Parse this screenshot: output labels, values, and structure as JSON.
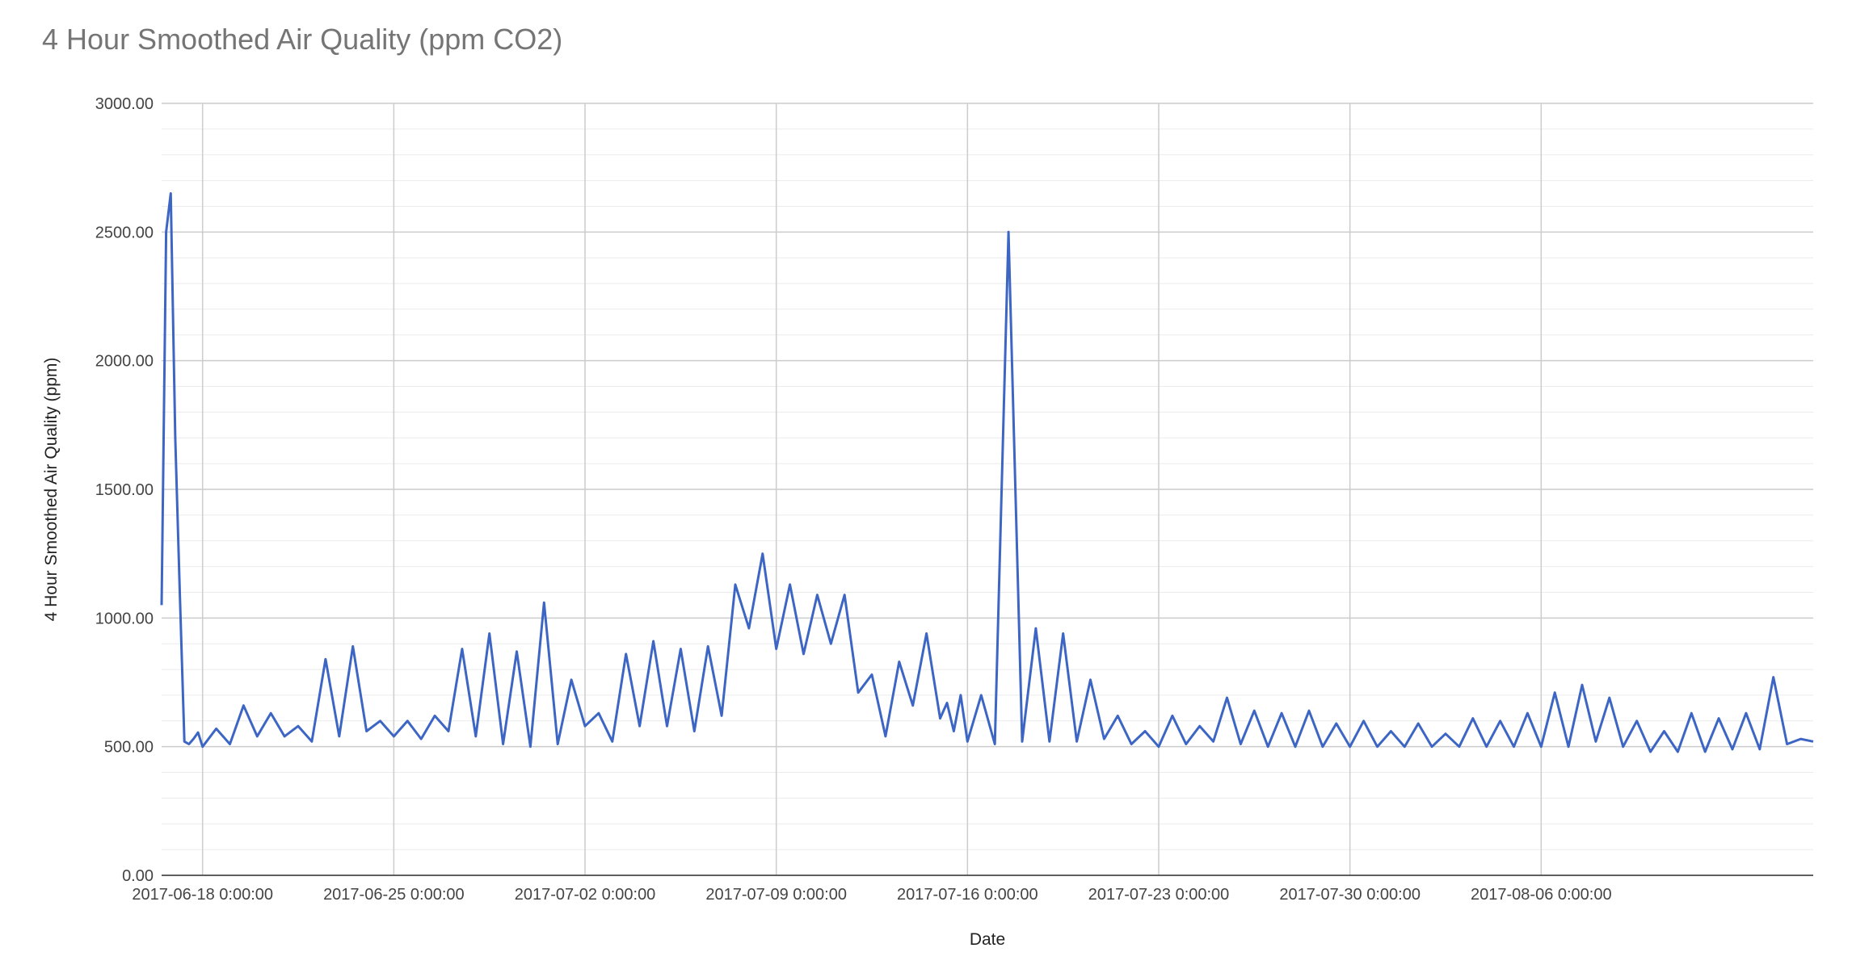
{
  "chart_data": {
    "type": "line",
    "title": "4 Hour Smoothed Air Quality (ppm CO2)",
    "xlabel": "Date",
    "ylabel": "4 Hour Smoothed Air Quality (ppm)",
    "ylim": [
      0,
      3000
    ],
    "xlim": [
      "2017-06-16 12:00:00",
      "2017-08-15 23:00:00"
    ],
    "y_ticks": [
      "0.00",
      "500.00",
      "1000.00",
      "1500.00",
      "2000.00",
      "2500.00",
      "3000.00"
    ],
    "x_ticks": [
      "2017-06-18 0:00:00",
      "2017-06-25 0:00:00",
      "2017-07-02 0:00:00",
      "2017-07-09 0:00:00",
      "2017-07-16 0:00:00",
      "2017-07-23 0:00:00",
      "2017-07-30 0:00:00",
      "2017-08-06 0:00:00"
    ],
    "grid": true,
    "legend": "none",
    "line_color": "#3d66c4",
    "series": [
      {
        "x": [
          "2017-06-16 12:00:00",
          "2017-06-16 16:00:00",
          "2017-06-16 20:00:00",
          "2017-06-17 00:00:00",
          "2017-06-17 04:00:00",
          "2017-06-17 08:00:00",
          "2017-06-17 12:00:00",
          "2017-06-17 16:00:00",
          "2017-06-17 20:00:00",
          "2017-06-18 00:00:00",
          "2017-06-18 12:00:00",
          "2017-06-19 00:00:00",
          "2017-06-19 12:00:00",
          "2017-06-20 00:00:00",
          "2017-06-20 12:00:00",
          "2017-06-21 00:00:00",
          "2017-06-21 12:00:00",
          "2017-06-22 00:00:00",
          "2017-06-22 12:00:00",
          "2017-06-23 00:00:00",
          "2017-06-23 12:00:00",
          "2017-06-24 00:00:00",
          "2017-06-24 12:00:00",
          "2017-06-25 00:00:00",
          "2017-06-25 12:00:00",
          "2017-06-26 00:00:00",
          "2017-06-26 12:00:00",
          "2017-06-27 00:00:00",
          "2017-06-27 12:00:00",
          "2017-06-28 00:00:00",
          "2017-06-28 12:00:00",
          "2017-06-29 00:00:00",
          "2017-06-29 12:00:00",
          "2017-06-30 00:00:00",
          "2017-06-30 12:00:00",
          "2017-07-01 00:00:00",
          "2017-07-01 12:00:00",
          "2017-07-02 00:00:00",
          "2017-07-02 12:00:00",
          "2017-07-03 00:00:00",
          "2017-07-03 12:00:00",
          "2017-07-04 00:00:00",
          "2017-07-04 12:00:00",
          "2017-07-05 00:00:00",
          "2017-07-05 12:00:00",
          "2017-07-06 00:00:00",
          "2017-07-06 12:00:00",
          "2017-07-07 00:00:00",
          "2017-07-07 12:00:00",
          "2017-07-08 00:00:00",
          "2017-07-08 12:00:00",
          "2017-07-09 00:00:00",
          "2017-07-09 12:00:00",
          "2017-07-10 00:00:00",
          "2017-07-10 12:00:00",
          "2017-07-11 00:00:00",
          "2017-07-11 12:00:00",
          "2017-07-12 00:00:00",
          "2017-07-12 12:00:00",
          "2017-07-13 00:00:00",
          "2017-07-13 12:00:00",
          "2017-07-14 00:00:00",
          "2017-07-14 12:00:00",
          "2017-07-15 00:00:00",
          "2017-07-15 06:00:00",
          "2017-07-15 12:00:00",
          "2017-07-15 18:00:00",
          "2017-07-16 00:00:00",
          "2017-07-16 12:00:00",
          "2017-07-17 00:00:00",
          "2017-07-17 12:00:00",
          "2017-07-18 00:00:00",
          "2017-07-18 12:00:00",
          "2017-07-19 00:00:00",
          "2017-07-19 12:00:00",
          "2017-07-20 00:00:00",
          "2017-07-20 12:00:00",
          "2017-07-21 00:00:00",
          "2017-07-21 12:00:00",
          "2017-07-22 00:00:00",
          "2017-07-22 12:00:00",
          "2017-07-23 00:00:00",
          "2017-07-23 12:00:00",
          "2017-07-24 00:00:00",
          "2017-07-24 12:00:00",
          "2017-07-25 00:00:00",
          "2017-07-25 12:00:00",
          "2017-07-26 00:00:00",
          "2017-07-26 12:00:00",
          "2017-07-27 00:00:00",
          "2017-07-27 12:00:00",
          "2017-07-28 00:00:00",
          "2017-07-28 12:00:00",
          "2017-07-29 00:00:00",
          "2017-07-29 12:00:00",
          "2017-07-30 00:00:00",
          "2017-07-30 12:00:00",
          "2017-07-31 00:00:00",
          "2017-07-31 12:00:00",
          "2017-08-01 00:00:00",
          "2017-08-01 12:00:00",
          "2017-08-02 00:00:00",
          "2017-08-02 12:00:00",
          "2017-08-03 00:00:00",
          "2017-08-03 12:00:00",
          "2017-08-04 00:00:00",
          "2017-08-04 12:00:00",
          "2017-08-05 00:00:00",
          "2017-08-05 12:00:00",
          "2017-08-06 00:00:00",
          "2017-08-06 12:00:00",
          "2017-08-07 00:00:00",
          "2017-08-07 12:00:00",
          "2017-08-08 00:00:00",
          "2017-08-08 12:00:00",
          "2017-08-09 00:00:00",
          "2017-08-09 12:00:00",
          "2017-08-10 00:00:00",
          "2017-08-10 12:00:00",
          "2017-08-11 00:00:00",
          "2017-08-11 12:00:00",
          "2017-08-12 00:00:00",
          "2017-08-12 12:00:00",
          "2017-08-13 00:00:00",
          "2017-08-13 12:00:00",
          "2017-08-14 00:00:00",
          "2017-08-14 12:00:00",
          "2017-08-15 00:00:00",
          "2017-08-15 12:00:00",
          "2017-08-15 23:00:00"
        ],
        "values": [
          1050,
          2500,
          2650,
          1700,
          1100,
          520,
          510,
          530,
          555,
          500,
          570,
          510,
          660,
          540,
          630,
          540,
          580,
          520,
          840,
          540,
          890,
          560,
          600,
          540,
          600,
          530,
          620,
          560,
          880,
          540,
          940,
          510,
          870,
          500,
          1060,
          510,
          760,
          580,
          630,
          520,
          860,
          580,
          910,
          580,
          880,
          560,
          890,
          620,
          1130,
          960,
          1250,
          880,
          1130,
          860,
          1090,
          900,
          1090,
          710,
          780,
          540,
          830,
          660,
          940,
          610,
          670,
          560,
          700,
          520,
          700,
          510,
          2500,
          520,
          960,
          520,
          940,
          520,
          760,
          530,
          620,
          510,
          560,
          500,
          620,
          510,
          580,
          520,
          690,
          510,
          640,
          500,
          630,
          500,
          640,
          500,
          590,
          500,
          600,
          500,
          560,
          500,
          590,
          500,
          550,
          500,
          610,
          500,
          600,
          500,
          630,
          500,
          710,
          500,
          740,
          520,
          690,
          500,
          600,
          480,
          560,
          480,
          630,
          480,
          610,
          490,
          630,
          490,
          770,
          510,
          530,
          520
        ]
      }
    ]
  }
}
